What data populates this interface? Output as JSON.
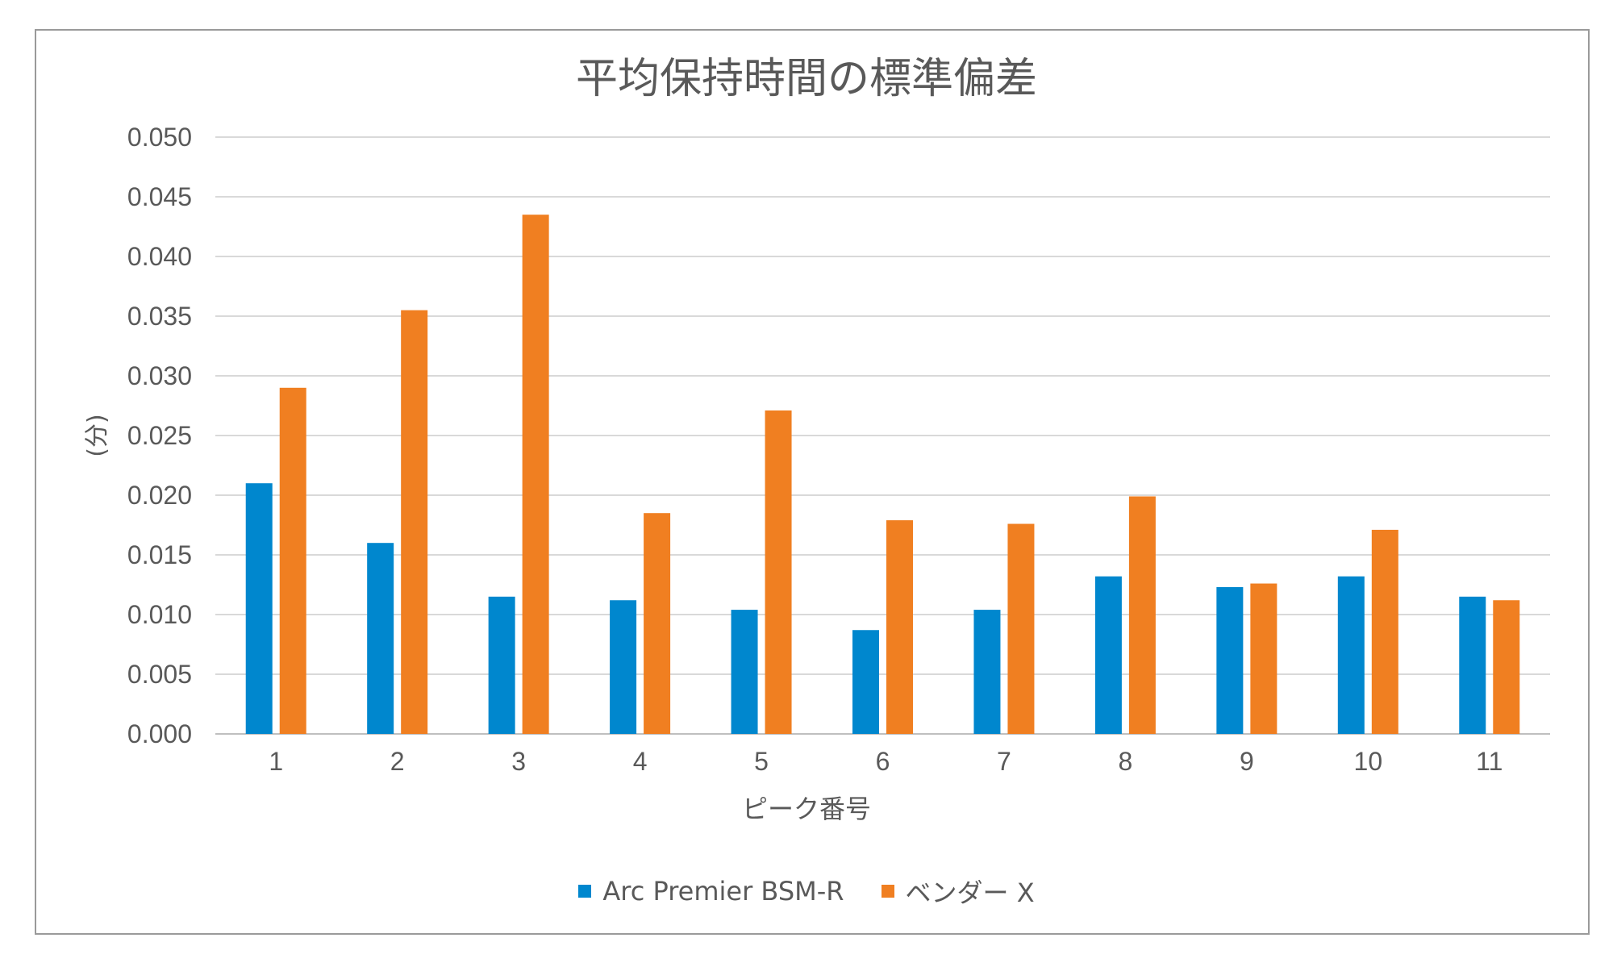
{
  "chart_data": {
    "type": "bar",
    "title": "平均保持時間の標準偏差",
    "xlabel": "ピーク番号",
    "ylabel": "(分)",
    "categories": [
      "1",
      "2",
      "3",
      "4",
      "5",
      "6",
      "7",
      "8",
      "9",
      "10",
      "11"
    ],
    "series": [
      {
        "name": "Arc Premier BSM-R",
        "color": "#0087CE",
        "values": [
          0.021,
          0.016,
          0.0115,
          0.0112,
          0.0104,
          0.0087,
          0.0104,
          0.0132,
          0.0123,
          0.0132,
          0.0115
        ]
      },
      {
        "name": "ベンダー X",
        "color": "#F07F21",
        "values": [
          0.029,
          0.0355,
          0.0435,
          0.0185,
          0.0271,
          0.0179,
          0.0176,
          0.0199,
          0.0126,
          0.0171,
          0.0112
        ]
      }
    ],
    "ylim": [
      0,
      0.05
    ],
    "yticks": [
      "0.000",
      "0.005",
      "0.010",
      "0.015",
      "0.020",
      "0.025",
      "0.030",
      "0.035",
      "0.040",
      "0.045",
      "0.050"
    ],
    "grid": true,
    "legend_position": "bottom"
  }
}
